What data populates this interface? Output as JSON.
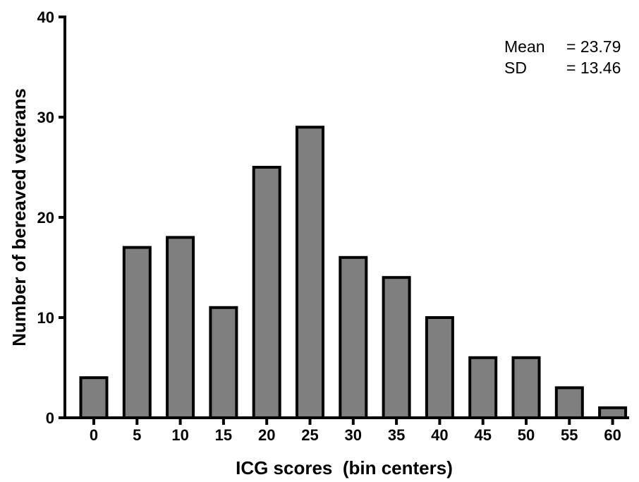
{
  "chart_data": {
    "type": "bar",
    "categories": [
      "0",
      "5",
      "10",
      "15",
      "20",
      "25",
      "30",
      "35",
      "40",
      "45",
      "50",
      "55",
      "60"
    ],
    "values": [
      4,
      17,
      18,
      11,
      25,
      29,
      16,
      14,
      10,
      6,
      6,
      3,
      1
    ],
    "xlabel": "ICG scores  (bin centers)",
    "ylabel": "Number of bereaved veterans",
    "ylim": [
      0,
      40
    ],
    "yticks": [
      "0",
      "10",
      "20",
      "30",
      "40"
    ],
    "grid": false,
    "bar_color": "#7f7f7f",
    "stats": {
      "mean_label": "Mean",
      "mean_value": "= 23.79",
      "sd_label": "SD",
      "sd_value": "= 13.46"
    }
  }
}
